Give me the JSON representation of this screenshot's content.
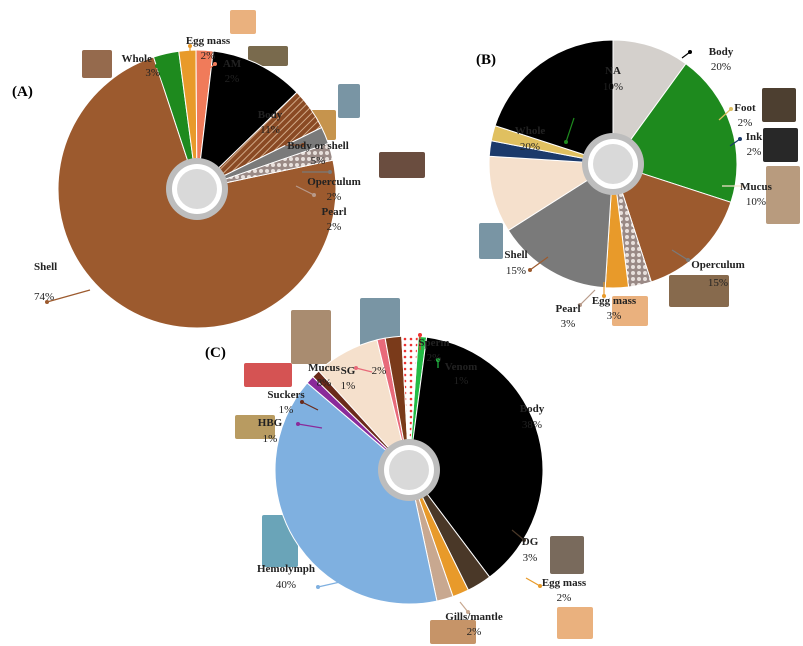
{
  "chart_data": [
    {
      "type": "pie",
      "panel": "(A)",
      "slices": [
        {
          "label": "Shell",
          "value": 74,
          "pct": "74%",
          "color": "#9c5a2e"
        },
        {
          "label": "Whole",
          "value": 3,
          "pct": "3%",
          "color": "#1e8a1e"
        },
        {
          "label": "Egg mass",
          "value": 2,
          "pct": "2%",
          "color": "#e89a2a"
        },
        {
          "label": "AM",
          "value": 2,
          "pct": "2%",
          "color": "#f07b5a"
        },
        {
          "label": "Body",
          "value": 11,
          "pct": "11%",
          "color": "#000000"
        },
        {
          "label": "Body or shell",
          "value": 5,
          "pct": "5%",
          "color": "#8a4a24",
          "hatch": true
        },
        {
          "label": "Operculum",
          "value": 2,
          "pct": "2%",
          "color": "#7a7a7a"
        },
        {
          "label": "Pearl",
          "value": 2,
          "pct": "2%",
          "color": "#b89a8a",
          "dotted": true
        }
      ]
    },
    {
      "type": "pie",
      "panel": "(B)",
      "slices": [
        {
          "label": "NA",
          "value": 10,
          "pct": "10%",
          "color": "#d4d0cc"
        },
        {
          "label": "Whole",
          "value": 20,
          "pct": "20%",
          "color": "#1e8a1e"
        },
        {
          "label": "Shell",
          "value": 15,
          "pct": "15%",
          "color": "#9c5a2e"
        },
        {
          "label": "Pearl",
          "value": 3,
          "pct": "3%",
          "color": "#b89a8a",
          "dotted": true
        },
        {
          "label": "Egg mass",
          "value": 3,
          "pct": "3%",
          "color": "#e89a2a"
        },
        {
          "label": "Operculum",
          "value": 15,
          "pct": "15%",
          "color": "#7a7a7a"
        },
        {
          "label": "Mucus",
          "value": 10,
          "pct": "10%",
          "color": "#f5e0cc"
        },
        {
          "label": "Ink",
          "value": 2,
          "pct": "2%",
          "color": "#1b3a6b"
        },
        {
          "label": "Foot",
          "value": 2,
          "pct": "2%",
          "color": "#e0c060"
        },
        {
          "label": "Body",
          "value": 20,
          "pct": "20%",
          "color": "#000000"
        }
      ]
    },
    {
      "type": "pie",
      "panel": "(C)",
      "slices": [
        {
          "label": "Venom",
          "value": 1,
          "pct": "1%",
          "color": "#22bb44"
        },
        {
          "label": "Body",
          "value": 38,
          "pct": "38%",
          "color": "#000000"
        },
        {
          "label": "DG",
          "value": 3,
          "pct": "3%",
          "color": "#4a3828"
        },
        {
          "label": "Egg mass",
          "value": 2,
          "pct": "2%",
          "color": "#e89a2a"
        },
        {
          "label": "Gills/mantle",
          "value": 2,
          "pct": "2%",
          "color": "#c8a890"
        },
        {
          "label": "Hemolymph",
          "value": 40,
          "pct": "40%",
          "color": "#7fb0e0"
        },
        {
          "label": "HBG",
          "value": 1,
          "pct": "1%",
          "color": "#8a2a9a"
        },
        {
          "label": "Suckers",
          "value": 1,
          "pct": "1%",
          "color": "#6a2a1a"
        },
        {
          "label": "Mucus",
          "value": 8,
          "pct": "8%",
          "color": "#f5e0cc"
        },
        {
          "label": "SG",
          "value": 1,
          "pct": "1%",
          "color": "#e86a7a"
        },
        {
          "label": "",
          "value": 2,
          "pct": "2%",
          "color": "#7a3a1a"
        },
        {
          "label": "Sperm",
          "value": 2,
          "pct": "2%",
          "color": "#ffffff",
          "dotted_red": true
        }
      ]
    }
  ]
}
